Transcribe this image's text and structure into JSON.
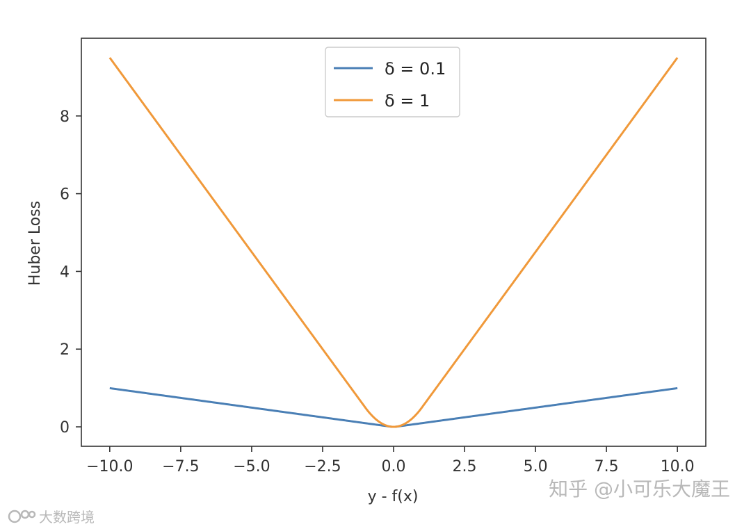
{
  "chart_data": {
    "type": "line",
    "title": "",
    "xlabel": "y - f(x)",
    "ylabel": "Huber Loss",
    "xlim": [
      -11.0,
      11.0
    ],
    "ylim": [
      -0.5,
      10.0
    ],
    "xticks": [
      -10.0,
      -7.5,
      -5.0,
      -2.5,
      0.0,
      2.5,
      5.0,
      7.5,
      10.0
    ],
    "xtick_labels": [
      "−10.0",
      "−7.5",
      "−5.0",
      "−2.5",
      "0.0",
      "2.5",
      "5.0",
      "7.5",
      "10.0"
    ],
    "yticks": [
      0,
      2,
      4,
      6,
      8
    ],
    "ytick_labels": [
      "0",
      "2",
      "4",
      "6",
      "8"
    ],
    "grid": false,
    "legend_position": "upper-center",
    "series": [
      {
        "name": "δ = 0.1",
        "delta": 0.1,
        "color": "#4a7fb5",
        "x_range": [
          -10,
          10
        ],
        "values_at": {
          "-10": 0.995,
          "0": 0.0,
          "10": 0.995
        }
      },
      {
        "name": "δ = 1",
        "delta": 1,
        "color": "#f0993a",
        "x_range": [
          -10,
          10
        ],
        "values_at": {
          "-10": 9.5,
          "0": 0.0,
          "10": 9.5
        }
      }
    ]
  },
  "watermarks": {
    "right": "知乎 @小可乐大魔王",
    "left": "大数跨境"
  }
}
